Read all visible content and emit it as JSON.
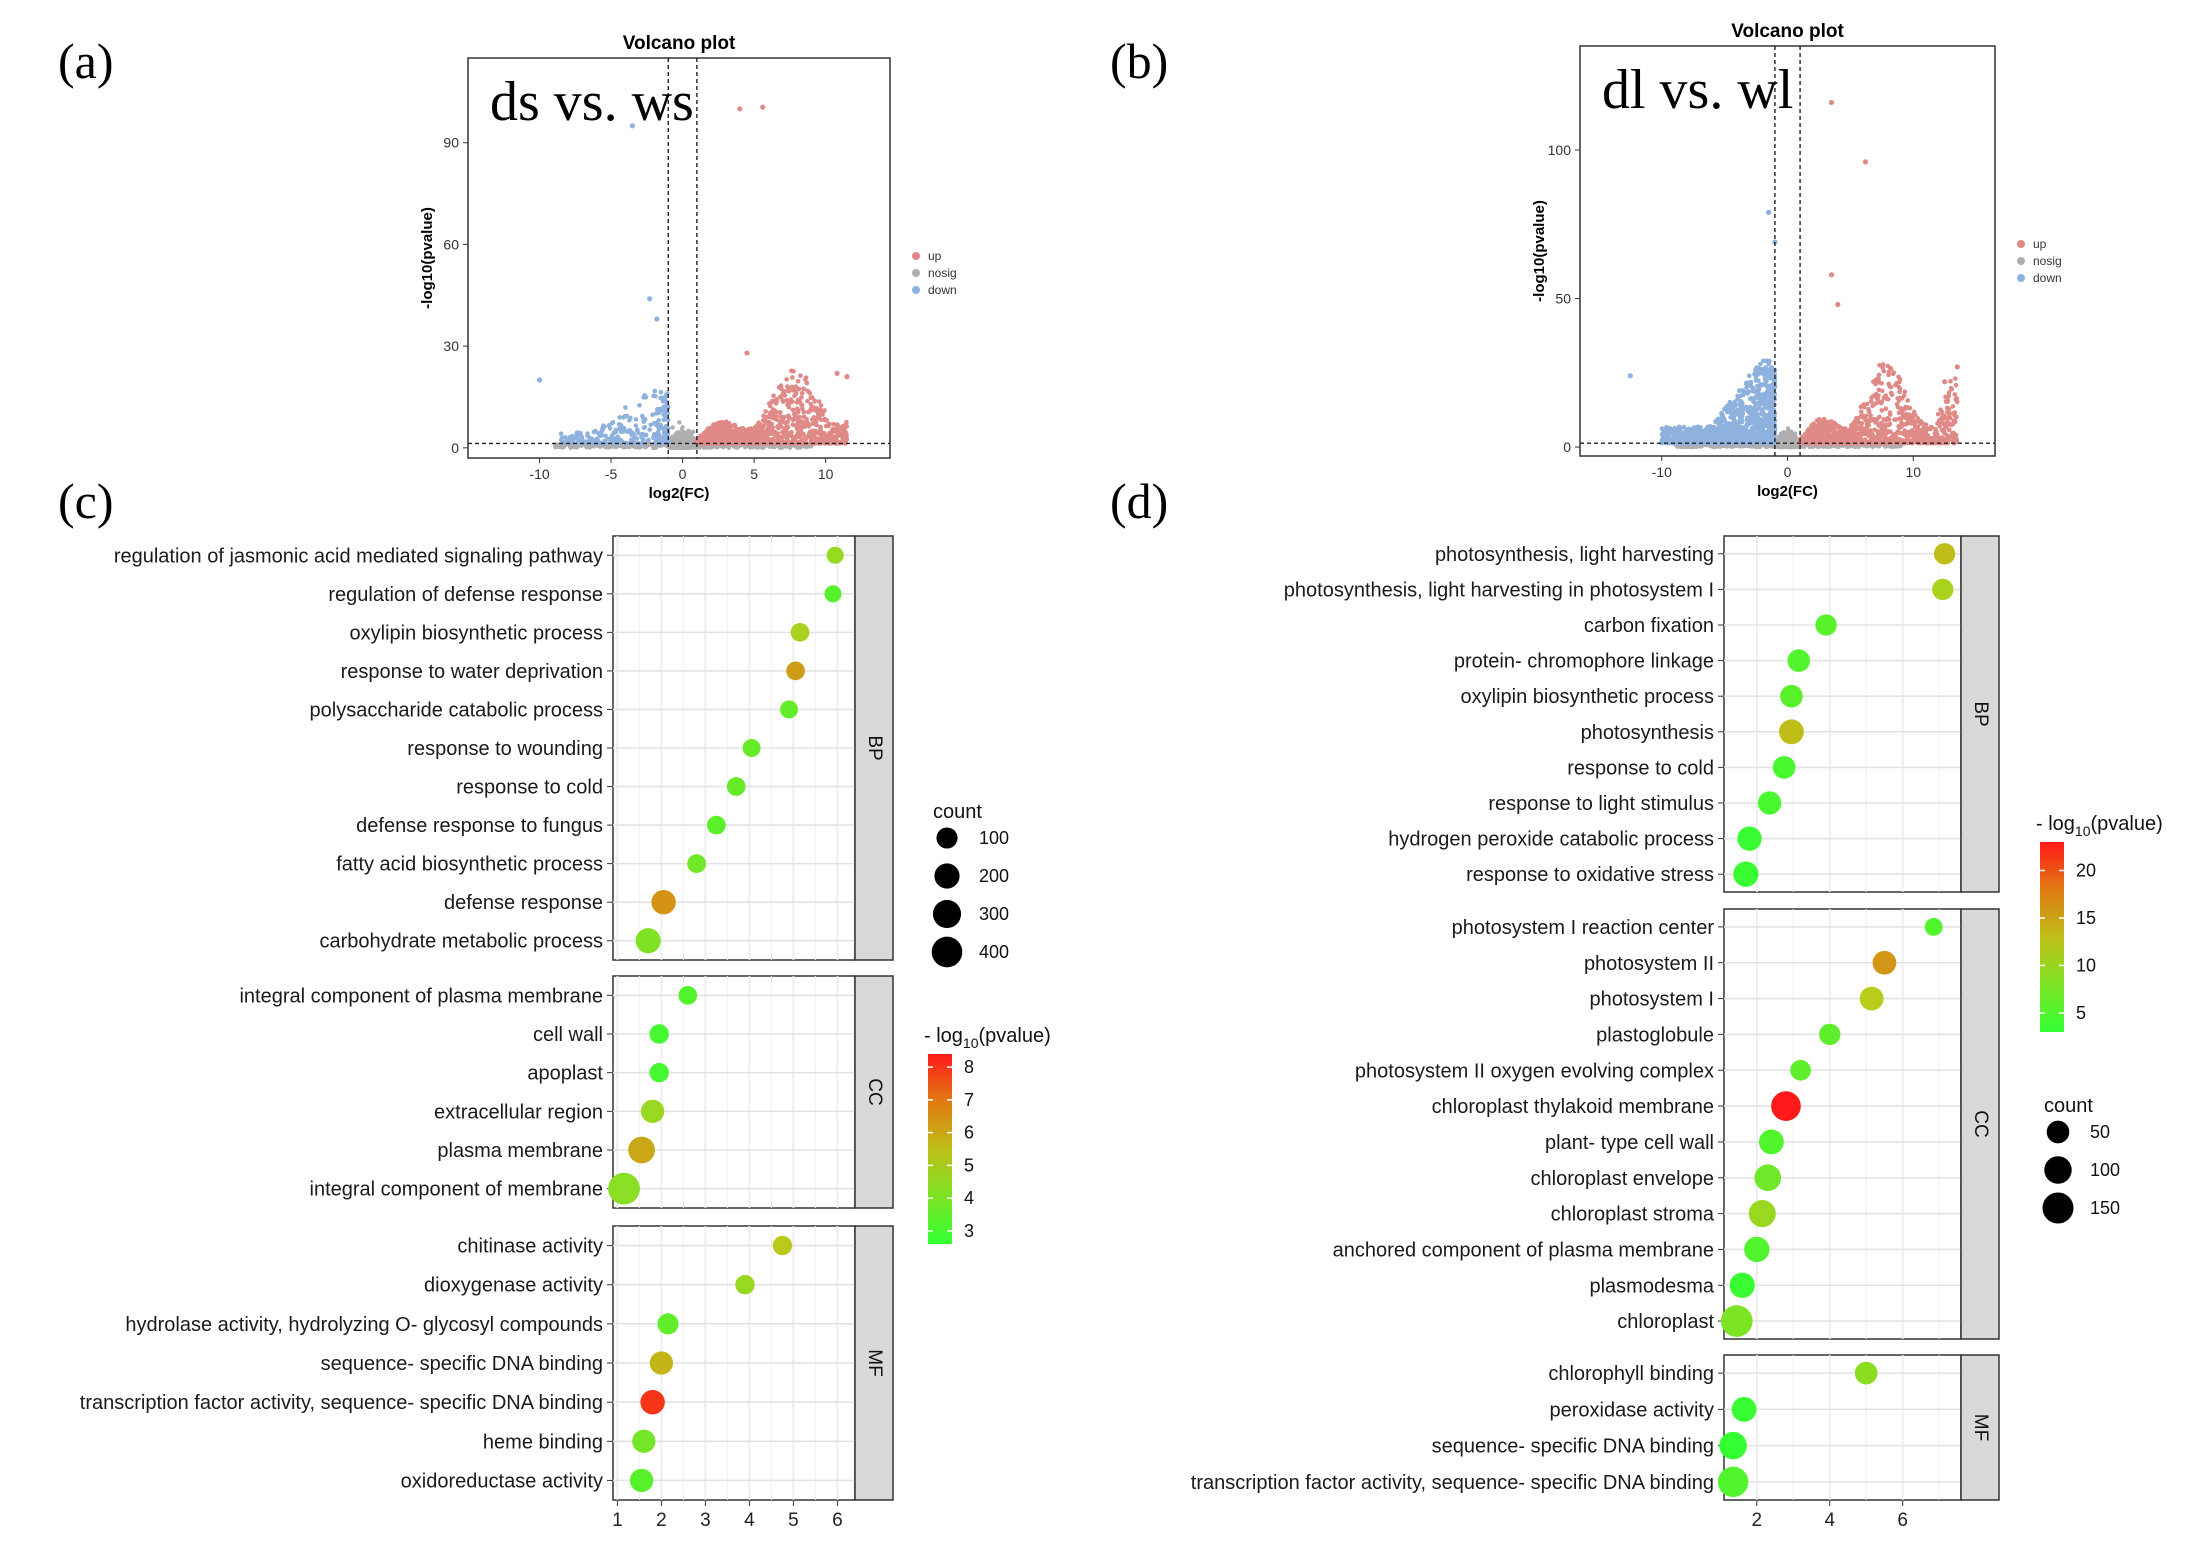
{
  "panel_labels": [
    "(a)",
    "(b)",
    "(c)",
    "(d)"
  ],
  "chart_data": [
    {
      "type": "scatter",
      "id": "volcano_a",
      "title": "Volcano plot",
      "label": "ds vs. ws",
      "xlabel": "log2(FC)",
      "ylabel": "-log10(pvalue)",
      "xlim": [
        -15,
        14.5
      ],
      "ylim": [
        -3,
        115
      ],
      "xticks": [
        -10,
        -5,
        0,
        5,
        10
      ],
      "yticks": [
        0,
        30,
        60,
        90
      ],
      "thresholds": {
        "x": [
          -1,
          1
        ],
        "y": 1.3
      },
      "legend": [
        "up",
        "nosig",
        "down"
      ],
      "colors": {
        "up": "#E08A87",
        "nosig": "#AFAFAF",
        "down": "#8FB1DE"
      },
      "notable_points": [
        {
          "x": 4,
          "y": 100,
          "group": "up"
        },
        {
          "x": 5.6,
          "y": 100.5,
          "group": "up"
        },
        {
          "x": -3.5,
          "y": 95,
          "group": "down"
        },
        {
          "x": -2.3,
          "y": 44,
          "group": "down"
        },
        {
          "x": -1.8,
          "y": 38,
          "group": "down"
        },
        {
          "x": -10,
          "y": 20,
          "group": "down"
        },
        {
          "x": 10.8,
          "y": 22,
          "group": "up"
        },
        {
          "x": 11.5,
          "y": 21,
          "group": "up"
        },
        {
          "x": 4.5,
          "y": 28,
          "group": "up"
        }
      ]
    },
    {
      "type": "scatter",
      "id": "volcano_b",
      "title": "Volcano plot",
      "label": "dl vs. wl",
      "xlabel": "log2(FC)",
      "ylabel": "-log10(pvalue)",
      "xlim": [
        -16.5,
        16.5
      ],
      "ylim": [
        -3,
        135
      ],
      "xticks": [
        -10,
        0,
        10
      ],
      "yticks": [
        0,
        50,
        100
      ],
      "thresholds": {
        "x": [
          -1,
          1
        ],
        "y": 1.3
      },
      "legend": [
        "up",
        "nosig",
        "down"
      ],
      "colors": {
        "up": "#E08A87",
        "nosig": "#AFAFAF",
        "down": "#8FB1DE"
      },
      "notable_points": [
        {
          "x": 3.5,
          "y": 116,
          "group": "up"
        },
        {
          "x": 6.2,
          "y": 96,
          "group": "up"
        },
        {
          "x": -1.5,
          "y": 79,
          "group": "down"
        },
        {
          "x": -1.0,
          "y": 69,
          "group": "down"
        },
        {
          "x": -12.5,
          "y": 24,
          "group": "down"
        },
        {
          "x": 13.5,
          "y": 27,
          "group": "up"
        },
        {
          "x": 12.5,
          "y": 22,
          "group": "up"
        },
        {
          "x": 3.5,
          "y": 58,
          "group": "up"
        },
        {
          "x": 4,
          "y": 48,
          "group": "up"
        }
      ]
    },
    {
      "type": "scatter",
      "id": "go_c",
      "subtype": "bubble",
      "xlim": [
        0.9,
        6.4
      ],
      "xticks": [
        1,
        2,
        3,
        4,
        5,
        6
      ],
      "color_title": "- log10(pvalue)",
      "color_range": [
        2.6,
        8.4
      ],
      "color_ticks": [
        3,
        4,
        5,
        6,
        7,
        8
      ],
      "size_title": "count",
      "size_ticks": [
        100,
        200,
        300,
        400
      ],
      "groups": [
        {
          "name": "BP",
          "terms": [
            {
              "term": "regulation of jasmonic acid mediated signaling pathway",
              "x": 5.95,
              "count": 40,
              "p": 4.5
            },
            {
              "term": "regulation of defense response",
              "x": 5.9,
              "count": 40,
              "p": 3.3
            },
            {
              "term": "oxylipin biosynthetic process",
              "x": 5.15,
              "count": 60,
              "p": 5.0
            },
            {
              "term": "response to water deprivation",
              "x": 5.05,
              "count": 60,
              "p": 6.2
            },
            {
              "term": "polysaccharide catabolic process",
              "x": 4.9,
              "count": 50,
              "p": 3.5
            },
            {
              "term": "response to wounding",
              "x": 4.05,
              "count": 50,
              "p": 3.6
            },
            {
              "term": "response to cold",
              "x": 3.7,
              "count": 60,
              "p": 3.6
            },
            {
              "term": "defense response to fungus",
              "x": 3.25,
              "count": 60,
              "p": 3.4
            },
            {
              "term": "fatty acid biosynthetic process",
              "x": 2.8,
              "count": 60,
              "p": 3.8
            },
            {
              "term": "defense response",
              "x": 2.05,
              "count": 180,
              "p": 6.4
            },
            {
              "term": "carbohydrate metabolic process",
              "x": 1.7,
              "count": 200,
              "p": 4.1
            }
          ]
        },
        {
          "name": "CC",
          "terms": [
            {
              "term": "integral component of plasma membrane",
              "x": 2.6,
              "count": 60,
              "p": 3.2
            },
            {
              "term": "cell wall",
              "x": 1.95,
              "count": 70,
              "p": 3.0
            },
            {
              "term": "apoplast",
              "x": 1.95,
              "count": 70,
              "p": 3.0
            },
            {
              "term": "extracellular region",
              "x": 1.8,
              "count": 150,
              "p": 4.6
            },
            {
              "term": "plasma membrane",
              "x": 1.55,
              "count": 250,
              "p": 6.0
            },
            {
              "term": "integral component of membrane",
              "x": 1.15,
              "count": 450,
              "p": 4.3
            }
          ]
        },
        {
          "name": "MF",
          "terms": [
            {
              "term": "chitinase activity",
              "x": 4.75,
              "count": 70,
              "p": 5.3
            },
            {
              "term": "dioxygenase activity",
              "x": 3.9,
              "count": 70,
              "p": 4.6
            },
            {
              "term": "hydrolase activity, hydrolyzing O- glycosyl compounds",
              "x": 2.15,
              "count": 100,
              "p": 3.5
            },
            {
              "term": "sequence- specific DNA binding",
              "x": 2.0,
              "count": 150,
              "p": 5.7
            },
            {
              "term": "transcription factor activity, sequence- specific DNA binding",
              "x": 1.8,
              "count": 180,
              "p": 8.0
            },
            {
              "term": "heme binding",
              "x": 1.6,
              "count": 150,
              "p": 3.9
            },
            {
              "term": "oxidoreductase activity",
              "x": 1.55,
              "count": 150,
              "p": 3.3
            }
          ]
        }
      ]
    },
    {
      "type": "scatter",
      "id": "go_d",
      "subtype": "bubble",
      "xlim": [
        1.1,
        7.6
      ],
      "xticks": [
        2,
        4,
        6
      ],
      "color_title": "- log10(pvalue)",
      "color_range": [
        3,
        23
      ],
      "color_ticks": [
        5,
        10,
        15,
        20
      ],
      "size_title": "count",
      "size_ticks": [
        50,
        100,
        150
      ],
      "groups": [
        {
          "name": "BP",
          "terms": [
            {
              "term": "photosynthesis, light harvesting",
              "x": 7.15,
              "count": 40,
              "p": 13.0
            },
            {
              "term": "photosynthesis, light harvesting in photosystem I",
              "x": 7.1,
              "count": 40,
              "p": 11.0
            },
            {
              "term": "carbon fixation",
              "x": 3.9,
              "count": 40,
              "p": 5.5
            },
            {
              "term": "protein- chromophore linkage",
              "x": 3.15,
              "count": 50,
              "p": 5.0
            },
            {
              "term": "oxylipin biosynthetic process",
              "x": 2.95,
              "count": 50,
              "p": 5.5
            },
            {
              "term": "photosynthesis",
              "x": 2.95,
              "count": 70,
              "p": 13.0
            },
            {
              "term": "response to cold",
              "x": 2.75,
              "count": 50,
              "p": 4.5
            },
            {
              "term": "response to light stimulus",
              "x": 2.35,
              "count": 55,
              "p": 4.5
            },
            {
              "term": "hydrogen peroxide catabolic process",
              "x": 1.8,
              "count": 65,
              "p": 3.5
            },
            {
              "term": "response to oxidative stress",
              "x": 1.7,
              "count": 75,
              "p": 3.5
            }
          ]
        },
        {
          "name": "CC",
          "terms": [
            {
              "term": "photosystem I reaction center",
              "x": 6.85,
              "count": 20,
              "p": 5.0
            },
            {
              "term": "photosystem II",
              "x": 5.5,
              "count": 60,
              "p": 16.0
            },
            {
              "term": "photosystem I",
              "x": 5.15,
              "count": 60,
              "p": 12.0
            },
            {
              "term": "plastoglobule",
              "x": 4.0,
              "count": 40,
              "p": 6.0
            },
            {
              "term": "photosystem II oxygen evolving complex",
              "x": 3.2,
              "count": 35,
              "p": 6.0
            },
            {
              "term": "chloroplast thylakoid membrane",
              "x": 2.8,
              "count": 130,
              "p": 23.0
            },
            {
              "term": "plant- type cell wall",
              "x": 2.4,
              "count": 70,
              "p": 5.0
            },
            {
              "term": "chloroplast envelope",
              "x": 2.3,
              "count": 90,
              "p": 7.0
            },
            {
              "term": "chloroplast stroma",
              "x": 2.15,
              "count": 95,
              "p": 10.0
            },
            {
              "term": "anchored component of plasma membrane",
              "x": 2.0,
              "count": 75,
              "p": 5.0
            },
            {
              "term": "plasmodesma",
              "x": 1.6,
              "count": 75,
              "p": 3.5
            },
            {
              "term": "chloroplast",
              "x": 1.45,
              "count": 160,
              "p": 8.0
            }
          ]
        },
        {
          "name": "MF",
          "terms": [
            {
              "term": "chlorophyll binding",
              "x": 5.0,
              "count": 50,
              "p": 9.0
            },
            {
              "term": "peroxidase activity",
              "x": 1.65,
              "count": 70,
              "p": 3.5
            },
            {
              "term": "sequence- specific DNA binding",
              "x": 1.35,
              "count": 100,
              "p": 3.0
            },
            {
              "term": "transcription factor activity, sequence- specific DNA binding",
              "x": 1.35,
              "count": 140,
              "p": 5.0
            }
          ]
        }
      ]
    }
  ]
}
